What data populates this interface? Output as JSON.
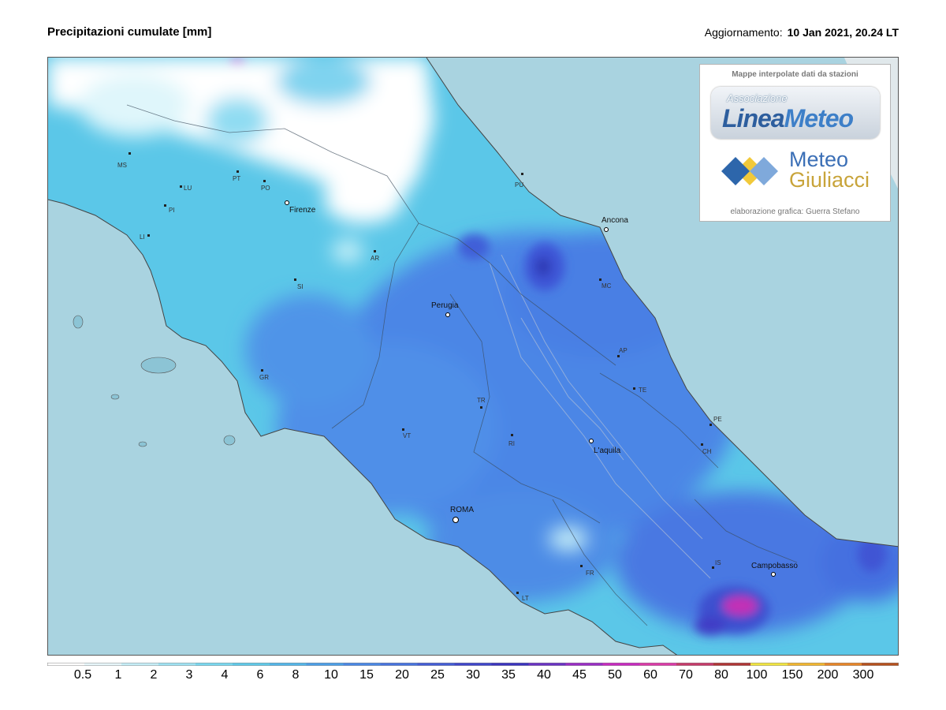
{
  "header": {
    "title": "Precipitazioni cumulate [mm]",
    "updated_label": "Aggiornamento:",
    "updated_value": "10 Jan 2021, 20.24 LT"
  },
  "logo_box": {
    "caption": "Mappe interpolate dati da stazioni",
    "brand_top": "Associazione",
    "brand_main_a": "Linea",
    "brand_main_b": "Meteo",
    "brand2_line1": "Meteo",
    "brand2_line2": "Giuliacci",
    "credit": "elaborazione grafica: Guerra Stefano"
  },
  "map": {
    "colors": {
      "sea": "#a9d3e0",
      "land_low": "#5bc7e8",
      "land_mid": "#4c86e6",
      "land_high": "#3f5fd8",
      "dry": "#ffffff"
    },
    "cities": [
      "Firenze",
      "Ancona",
      "Perugia",
      "L'aquila",
      "ROMA",
      "Campobasso"
    ],
    "provinces": [
      "MS",
      "LU",
      "PT",
      "PO",
      "PI",
      "LI",
      "AR",
      "SI",
      "GR",
      "PU",
      "MC",
      "AP",
      "TE",
      "PE",
      "CH",
      "TR",
      "RI",
      "VT",
      "FR",
      "LT",
      "IS"
    ]
  },
  "legend": {
    "ticks": [
      "0.5",
      "1",
      "2",
      "3",
      "4",
      "6",
      "8",
      "10",
      "15",
      "20",
      "25",
      "30",
      "35",
      "40",
      "45",
      "50",
      "60",
      "70",
      "80",
      "100",
      "150",
      "200",
      "300"
    ],
    "colors": [
      "#ffffff",
      "#e8f7fb",
      "#c6eef8",
      "#9fe3f4",
      "#79d8f0",
      "#5fcaea",
      "#53b6ea",
      "#4c9fe8",
      "#4a88e6",
      "#4773df",
      "#435dd6",
      "#3f46cb",
      "#3a33bf",
      "#6a32c4",
      "#9a2dc6",
      "#c82ac0",
      "#dc3aa8",
      "#c73a6a",
      "#b03535",
      "#f2e640",
      "#f2b630",
      "#e88628",
      "#b6511d"
    ]
  }
}
